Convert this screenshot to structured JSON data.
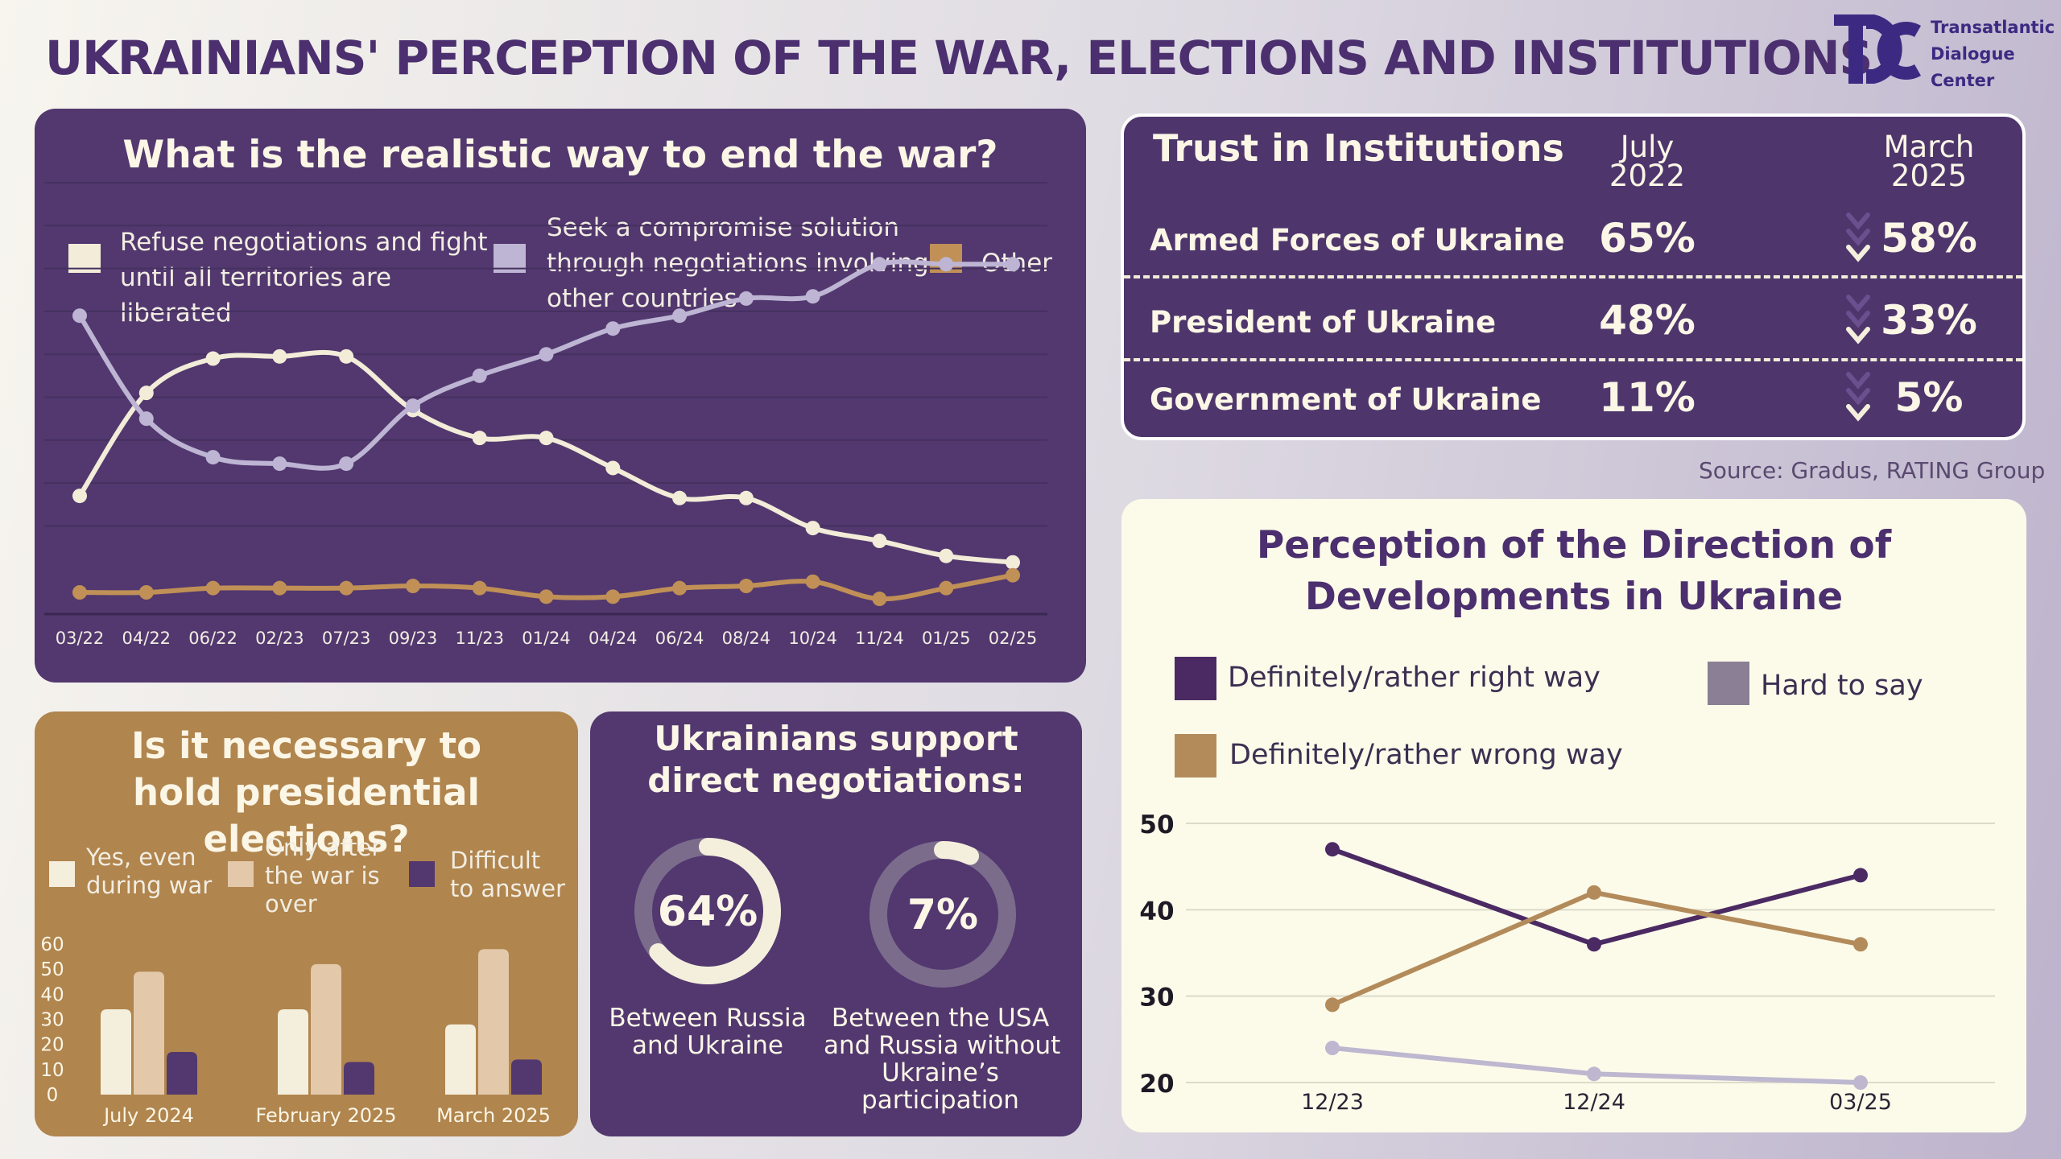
{
  "title": "UKRAINIANS' PERCEPTION OF THE WAR, ELECTIONS AND INSTITUTIONS",
  "logo": {
    "lines": [
      "Transatlantic",
      "Dialogue",
      "Center"
    ]
  },
  "source": "Source: Gradus, RATING Group",
  "colors": {
    "dark_purple": "#52386f",
    "cream": "#f2ecd8",
    "lavender": "#bdb5d3",
    "tan": "#c09056",
    "title": "#4b2f6e"
  },
  "war": {
    "title": "What is the realistic way to end the war?",
    "legend": [
      {
        "label": "Refuse negotiations and fight\nuntil all territories are\nliberated",
        "color": "#f2ecd8"
      },
      {
        "label": "Seek a compromise solution\nthrough negotiations involving\nother countries",
        "color": "#bdb5d3"
      },
      {
        "label": "Other",
        "color": "#c09056"
      }
    ]
  },
  "elections": {
    "title": "Is it necessary to hold presidential elections?",
    "legend": [
      {
        "label": "Yes, even\nduring war",
        "color": "#f4efdc"
      },
      {
        "label": "Only after\nthe war is\nover",
        "color": "#e3c8aa"
      },
      {
        "label": "Difficult\nto answer",
        "color": "#52386f"
      }
    ]
  },
  "negotiations": {
    "title": "Ukrainians support direct negotiations:",
    "items": [
      {
        "value": "64%",
        "fraction": 0.64,
        "label": "Between Russia\nand Ukraine"
      },
      {
        "value": "7%",
        "fraction": 0.07,
        "label": "Between the USA\nand Russia without\nUkraine’s\nparticipation"
      }
    ]
  },
  "trust": {
    "title": "Trust in Institutions",
    "col1": "July\n2022",
    "col2": "March\n2025",
    "rows": [
      {
        "name": "Armed Forces of Ukraine",
        "v1": "65%",
        "v2": "58%"
      },
      {
        "name": "President of Ukraine",
        "v1": "48%",
        "v2": "33%"
      },
      {
        "name": "Government of Ukraine",
        "v1": "11%",
        "v2": "5%"
      }
    ]
  },
  "direction": {
    "title": "Perception of the Direction of\nDevelopments in Ukraine",
    "legend": [
      {
        "label": "Definitely/rather right way",
        "color": "#4b2a63"
      },
      {
        "label": "Hard to say",
        "color": "#8a7f94"
      },
      {
        "label": "Definitely/rather wrong way",
        "color": "#b38b5b"
      }
    ]
  },
  "chart_data": [
    {
      "type": "line",
      "title": "What is the realistic way to end the war?",
      "x": [
        "03/22",
        "04/22",
        "06/22",
        "02/23",
        "07/23",
        "09/23",
        "11/23",
        "01/24",
        "04/24",
        "06/24",
        "08/24",
        "10/24",
        "11/24",
        "01/25",
        "02/25"
      ],
      "ylim": [
        0,
        100
      ],
      "grid": true,
      "series": [
        {
          "name": "Refuse negotiations and fight until all territories are liberated",
          "color": "#f2ecd8",
          "values": [
            27,
            51,
            59,
            59.5,
            59.5,
            47,
            40.5,
            40.5,
            33.5,
            26.5,
            26.5,
            19.5,
            16.5,
            13,
            11.5
          ]
        },
        {
          "name": "Seek a compromise solution through negotiations involving other countries",
          "color": "#bdb5d3",
          "values": [
            69,
            45,
            36,
            34.5,
            34.5,
            48,
            55,
            60,
            66,
            69,
            73,
            73.5,
            81,
            81,
            81
          ]
        },
        {
          "name": "Other",
          "color": "#c09056",
          "values": [
            4.5,
            4.5,
            5.5,
            5.5,
            5.5,
            6,
            5.5,
            3.5,
            3.5,
            5.5,
            6,
            7,
            3,
            5.5,
            8.5
          ]
        }
      ]
    },
    {
      "type": "bar",
      "title": "Is it necessary to hold presidential elections?",
      "categories": [
        "July 2024",
        "February 2025",
        "March 2025"
      ],
      "ylim": [
        0,
        60
      ],
      "yticks": [
        0,
        10,
        20,
        30,
        40,
        50,
        60
      ],
      "series": [
        {
          "name": "Yes, even during war",
          "color": "#f4efdc",
          "values": [
            34,
            34,
            28
          ]
        },
        {
          "name": "Only after the war is over",
          "color": "#e3c8aa",
          "values": [
            49,
            52,
            58
          ]
        },
        {
          "name": "Difficult to answer",
          "color": "#52386f",
          "values": [
            17,
            13,
            14
          ]
        }
      ]
    },
    {
      "type": "line",
      "title": "Perception of the Direction of Developments in Ukraine",
      "x": [
        "12/23",
        "12/24",
        "03/25"
      ],
      "ylim": [
        20,
        50
      ],
      "yticks": [
        20,
        30,
        40,
        50
      ],
      "grid": true,
      "series": [
        {
          "name": "Definitely/rather right way",
          "color": "#4b2a63",
          "values": [
            47,
            36,
            44
          ]
        },
        {
          "name": "Definitely/rather wrong way",
          "color": "#b38b5b",
          "values": [
            29,
            42,
            36
          ]
        },
        {
          "name": "Hard to say",
          "color": "#bdb7cf",
          "values": [
            24,
            21,
            20
          ]
        }
      ]
    }
  ]
}
